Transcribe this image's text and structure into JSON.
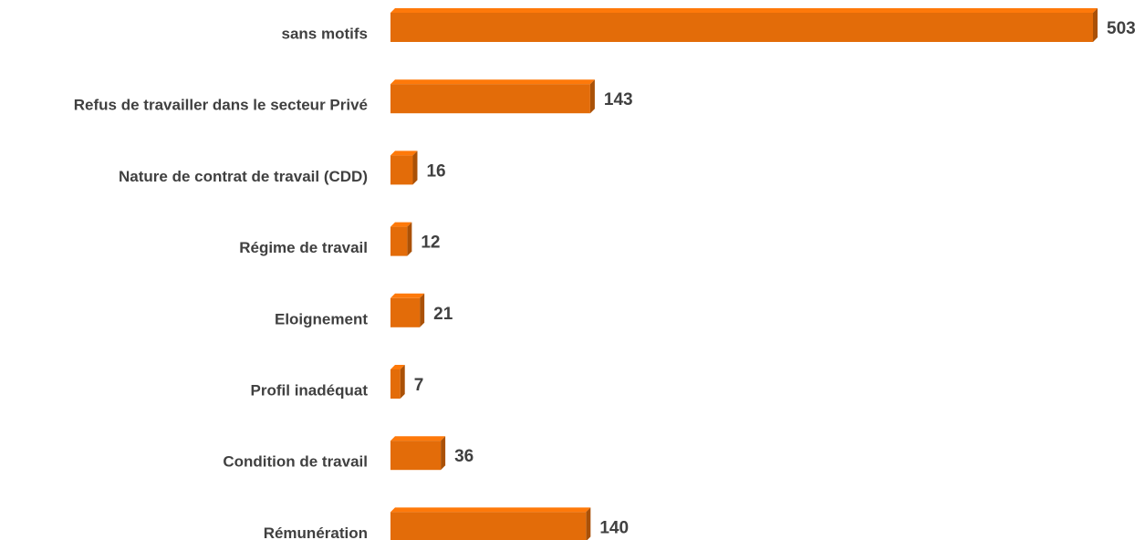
{
  "chart_data": {
    "type": "bar",
    "orientation": "horizontal",
    "categories": [
      "sans motifs",
      "Refus de travailler dans le secteur Privé",
      "Nature de contrat de travail (CDD)",
      "Régime de travail",
      "Eloignement",
      "Profil inadéquat",
      "Condition de travail",
      "Rémunération"
    ],
    "values": [
      503,
      143,
      16,
      12,
      21,
      7,
      36,
      140
    ],
    "color": "#e36c09"
  }
}
